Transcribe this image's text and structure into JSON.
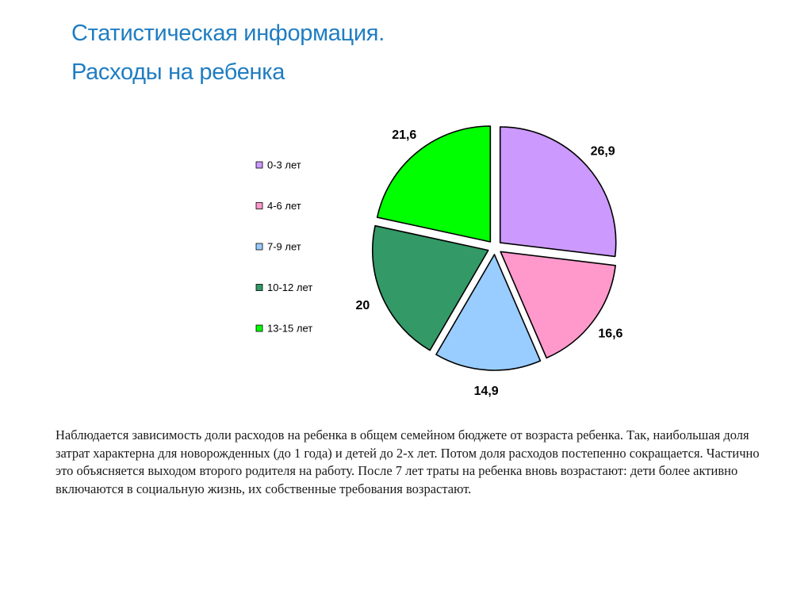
{
  "slide": {
    "title_line1": "Статистическая информация.",
    "title_line2": "Расходы на ребенка",
    "title_color": "#1F7DC2",
    "paragraph": "Наблюдается зависимость доли расходов на ребенка в общем семейном бюджете от возраста ребенка. Так, наибольшая доля затрат характерна для новорожденных (до 1 года) и детей до 2-х лет. Потом доля расходов постепенно сокращается. Частично это объясняется выходом второго родителя на работу. После 7 лет траты на ребенка вновь возрастают: дети более активно включаются в социальную жизнь, их собственные требования возрастают."
  },
  "chart_data": {
    "type": "pie",
    "exploded": true,
    "start": "12 o'clock, clockwise",
    "legend_position": "left",
    "categories": [
      "0-3 лет",
      "4-6 лет",
      "7-9 лет",
      "10-12 лет",
      "13-15 лет"
    ],
    "values": [
      26.9,
      16.6,
      14.9,
      20,
      21.6
    ],
    "labels": [
      "26,9",
      "16,6",
      "14,9",
      "20",
      "21,6"
    ],
    "colors": [
      "#CC99FF",
      "#FF99CC",
      "#99CCFF",
      "#339966",
      "#00FF00"
    ]
  }
}
